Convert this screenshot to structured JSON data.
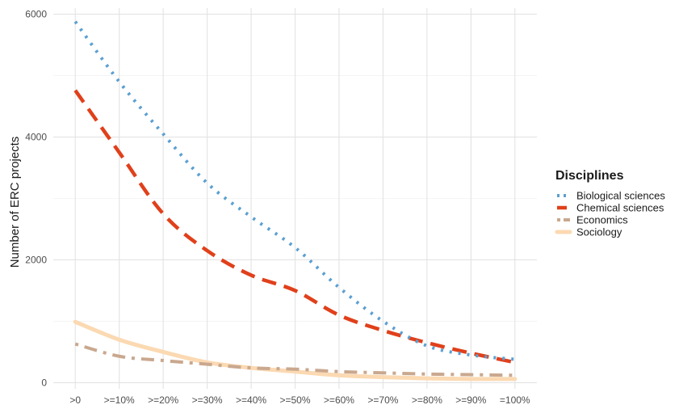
{
  "chart_data": {
    "type": "line",
    "title": "",
    "xlabel": "",
    "ylabel": "Number of ERC projects",
    "categories": [
      ">0",
      ">=10%",
      ">=20%",
      ">=30%",
      ">=40%",
      ">=50%",
      ">=60%",
      ">=70%",
      ">=80%",
      ">=90%",
      "=100%"
    ],
    "ylim": [
      -100,
      6100
    ],
    "yticks": [
      0,
      2000,
      4000,
      6000
    ],
    "grid": true,
    "legend": {
      "title": "Disciplines",
      "position": "right"
    },
    "series": [
      {
        "name": "Biological sciences",
        "color": "#5b9fd1",
        "style": "dotted",
        "values": [
          5880,
          4900,
          4050,
          3250,
          2700,
          2200,
          1550,
          1000,
          600,
          450,
          380
        ]
      },
      {
        "name": "Chemical sciences",
        "color": "#e0401b",
        "style": "dashed",
        "values": [
          4760,
          3750,
          2750,
          2150,
          1750,
          1500,
          1100,
          850,
          650,
          480,
          330
        ]
      },
      {
        "name": "Economics",
        "color": "#c9a88f",
        "style": "dashdot",
        "values": [
          630,
          430,
          360,
          300,
          240,
          220,
          180,
          160,
          140,
          130,
          120
        ]
      },
      {
        "name": "Sociology",
        "color": "#fbd9b2",
        "style": "solid",
        "values": [
          990,
          700,
          500,
          330,
          240,
          180,
          120,
          90,
          70,
          60,
          60
        ]
      }
    ]
  }
}
